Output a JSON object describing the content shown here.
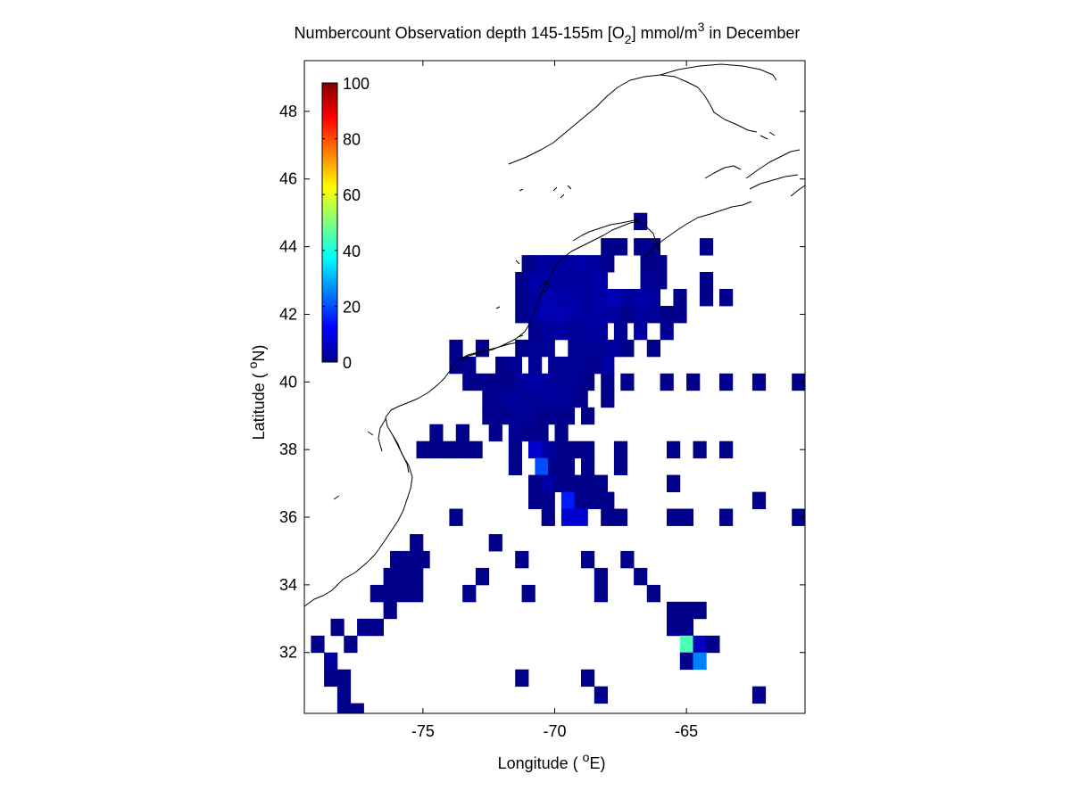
{
  "chart_data": {
    "type": "heatmap",
    "title": {
      "prefix": "Numbercount Observation depth 145-155m [O",
      "sub": "2",
      "mid": "] mmol/m",
      "sup": "3",
      "suffix": " in December"
    },
    "xlabel": {
      "text": "Longitude ( ",
      "sup": "o",
      "unit": "E)"
    },
    "ylabel": {
      "text": "Latitude ( ",
      "sup": "o",
      "unit": "N)"
    },
    "xlim": [
      -79.5,
      -60.5
    ],
    "ylim": [
      30.2,
      49.5
    ],
    "xticks": [
      -75,
      -70,
      -65
    ],
    "xtick_labels": [
      "-75",
      "-70",
      "-65"
    ],
    "yticks": [
      32,
      34,
      36,
      38,
      40,
      42,
      44,
      46,
      48
    ],
    "ytick_labels": [
      "32",
      "34",
      "36",
      "38",
      "40",
      "42",
      "44",
      "46",
      "48"
    ],
    "grid": false,
    "cell_size_deg": 0.5,
    "colormap": "jet",
    "colorbar": {
      "min": 0,
      "max": 100,
      "ticks": [
        0,
        20,
        40,
        60,
        80,
        100
      ],
      "tick_labels": [
        "0",
        "20",
        "40",
        "60",
        "80",
        "100"
      ],
      "placement": "top-left inside axes"
    },
    "coastline_color": "#000000",
    "cells": [
      [
        -66.75,
        44.75,
        1
      ],
      [
        -68,
        44,
        1
      ],
      [
        -67.5,
        44,
        1
      ],
      [
        -66.75,
        44,
        1
      ],
      [
        -66.25,
        44,
        1
      ],
      [
        -64.25,
        44,
        1
      ],
      [
        -71,
        43.5,
        1
      ],
      [
        -70.5,
        43.5,
        3
      ],
      [
        -70,
        43.5,
        3
      ],
      [
        -69.5,
        43.5,
        3
      ],
      [
        -69,
        43.5,
        4
      ],
      [
        -68.5,
        43.5,
        3
      ],
      [
        -68,
        43.5,
        1
      ],
      [
        -66.5,
        43.5,
        1
      ],
      [
        -66,
        43.5,
        1
      ],
      [
        -71.25,
        43,
        1
      ],
      [
        -70.75,
        43,
        4
      ],
      [
        -70.25,
        43,
        4
      ],
      [
        -69.75,
        43,
        3
      ],
      [
        -69.25,
        43,
        3
      ],
      [
        -68.75,
        43,
        3
      ],
      [
        -68.25,
        43,
        4
      ],
      [
        -66.5,
        43,
        2
      ],
      [
        -66,
        43,
        1
      ],
      [
        -64.25,
        43,
        1
      ],
      [
        -71.25,
        42.5,
        1
      ],
      [
        -70.75,
        42.5,
        3
      ],
      [
        -70.25,
        42.5,
        5
      ],
      [
        -69.75,
        42.5,
        4
      ],
      [
        -69.25,
        42.5,
        4
      ],
      [
        -68.75,
        42.5,
        3
      ],
      [
        -68.25,
        42.5,
        4
      ],
      [
        -67.75,
        42.5,
        5
      ],
      [
        -67.25,
        42.5,
        3
      ],
      [
        -66.75,
        42.5,
        4
      ],
      [
        -66.25,
        42.5,
        3
      ],
      [
        -65.25,
        42.5,
        1
      ],
      [
        -64.25,
        42.5,
        1
      ],
      [
        -63.5,
        42.5,
        1
      ],
      [
        -71.25,
        42,
        1
      ],
      [
        -70.75,
        42,
        4
      ],
      [
        -70.25,
        42,
        5
      ],
      [
        -69.75,
        42,
        5
      ],
      [
        -69.25,
        42,
        4
      ],
      [
        -68.75,
        42,
        3
      ],
      [
        -68.25,
        42,
        4
      ],
      [
        -67.75,
        42,
        3
      ],
      [
        -67.25,
        42,
        1
      ],
      [
        -66.75,
        42,
        3
      ],
      [
        -66.25,
        42,
        2
      ],
      [
        -65.75,
        42,
        1
      ],
      [
        -65.25,
        42,
        1
      ],
      [
        -70.75,
        41.5,
        1
      ],
      [
        -70.25,
        41.5,
        3
      ],
      [
        -69.75,
        41.5,
        3
      ],
      [
        -69.25,
        41.5,
        2
      ],
      [
        -68.75,
        41.5,
        3
      ],
      [
        -68.25,
        41.5,
        3
      ],
      [
        -67.5,
        41.5,
        2
      ],
      [
        -66.75,
        41.5,
        3
      ],
      [
        -65.75,
        41.5,
        2
      ],
      [
        -73.75,
        41,
        1
      ],
      [
        -72.75,
        41,
        1
      ],
      [
        -71.25,
        41,
        1
      ],
      [
        -70.75,
        41,
        2
      ],
      [
        -70.25,
        41,
        2
      ],
      [
        -69.25,
        41,
        2
      ],
      [
        -68.75,
        41,
        2
      ],
      [
        -68.25,
        41,
        2
      ],
      [
        -67.75,
        41,
        3
      ],
      [
        -67.25,
        41,
        1
      ],
      [
        -66.25,
        41,
        1
      ],
      [
        -73.75,
        40.5,
        1
      ],
      [
        -73.25,
        40.5,
        1
      ],
      [
        -72,
        40.5,
        1
      ],
      [
        -71.5,
        40.5,
        2
      ],
      [
        -70.75,
        40.5,
        2
      ],
      [
        -70,
        40.5,
        2
      ],
      [
        -69.5,
        40.5,
        2
      ],
      [
        -69,
        40.5,
        2
      ],
      [
        -68.5,
        40.5,
        1
      ],
      [
        -68,
        40.5,
        4
      ],
      [
        -73.25,
        40,
        1
      ],
      [
        -72.75,
        40,
        1
      ],
      [
        -72.25,
        40,
        1
      ],
      [
        -71.75,
        40,
        1
      ],
      [
        -71.25,
        40,
        3
      ],
      [
        -70.75,
        40,
        4
      ],
      [
        -70.25,
        40,
        3
      ],
      [
        -69.75,
        40,
        2
      ],
      [
        -69.25,
        40,
        2
      ],
      [
        -68.75,
        40,
        1
      ],
      [
        -68,
        40,
        1
      ],
      [
        -67.25,
        40,
        1
      ],
      [
        -65.75,
        40,
        1
      ],
      [
        -64.75,
        40,
        1
      ],
      [
        -63.5,
        40,
        1
      ],
      [
        -62.25,
        40,
        1
      ],
      [
        -60.75,
        40,
        1
      ],
      [
        -72.5,
        39.5,
        1
      ],
      [
        -72,
        39.5,
        2
      ],
      [
        -71.5,
        39.5,
        3
      ],
      [
        -71,
        39.5,
        2
      ],
      [
        -70.5,
        39.5,
        2
      ],
      [
        -70,
        39.5,
        3
      ],
      [
        -69.5,
        39.5,
        2
      ],
      [
        -69,
        39.5,
        1
      ],
      [
        -68,
        39.5,
        1
      ],
      [
        -72.5,
        39,
        1
      ],
      [
        -72,
        39,
        1
      ],
      [
        -71.5,
        39,
        2
      ],
      [
        -71,
        39,
        2
      ],
      [
        -70.5,
        39,
        1
      ],
      [
        -70,
        39,
        1
      ],
      [
        -69.5,
        39,
        1
      ],
      [
        -68.75,
        39,
        1
      ],
      [
        -74.5,
        38.5,
        1
      ],
      [
        -73.5,
        38.5,
        1
      ],
      [
        -72.25,
        38.5,
        1
      ],
      [
        -71.5,
        38.5,
        2
      ],
      [
        -71,
        38.5,
        1
      ],
      [
        -70.5,
        38.5,
        1
      ],
      [
        -69.75,
        38.5,
        1
      ],
      [
        -75,
        38,
        1
      ],
      [
        -74.5,
        38,
        1
      ],
      [
        -74,
        38,
        1
      ],
      [
        -73.5,
        38,
        1
      ],
      [
        -73,
        38,
        1
      ],
      [
        -71.5,
        38,
        1
      ],
      [
        -70.75,
        38,
        8
      ],
      [
        -70.25,
        38,
        3
      ],
      [
        -69.75,
        38,
        1
      ],
      [
        -69.25,
        38,
        1
      ],
      [
        -68.75,
        38,
        1
      ],
      [
        -67.5,
        38,
        1
      ],
      [
        -65.5,
        38,
        1
      ],
      [
        -64.5,
        38,
        1
      ],
      [
        -63.5,
        38,
        1
      ],
      [
        -71.5,
        37.5,
        1
      ],
      [
        -70.5,
        37.5,
        20
      ],
      [
        -70,
        37.5,
        1
      ],
      [
        -69.5,
        37.5,
        1
      ],
      [
        -68.75,
        37.5,
        1
      ],
      [
        -67.5,
        37.5,
        1
      ],
      [
        -70.75,
        37,
        1
      ],
      [
        -70.25,
        37,
        4
      ],
      [
        -69.75,
        37,
        1
      ],
      [
        -69.25,
        37,
        1
      ],
      [
        -68.75,
        37,
        1
      ],
      [
        -68.25,
        37,
        1
      ],
      [
        -65.5,
        37,
        1
      ],
      [
        -70.75,
        36.5,
        1
      ],
      [
        -70.25,
        36.5,
        1
      ],
      [
        -69.5,
        36.5,
        15
      ],
      [
        -69,
        36.5,
        1
      ],
      [
        -68.5,
        36.5,
        1
      ],
      [
        -68,
        36.5,
        1
      ],
      [
        -62.25,
        36.5,
        1
      ],
      [
        -73.75,
        36,
        1
      ],
      [
        -70.25,
        36,
        1
      ],
      [
        -69.5,
        36,
        8
      ],
      [
        -69,
        36,
        8
      ],
      [
        -68,
        36,
        1
      ],
      [
        -67.5,
        36,
        1
      ],
      [
        -65.5,
        36,
        1
      ],
      [
        -65,
        36,
        1
      ],
      [
        -63.5,
        36,
        1
      ],
      [
        -60.75,
        36,
        1
      ],
      [
        -75.25,
        35.25,
        1
      ],
      [
        -72.25,
        35.25,
        1
      ],
      [
        -76,
        34.75,
        1
      ],
      [
        -75.5,
        34.75,
        1
      ],
      [
        -75,
        34.75,
        1
      ],
      [
        -71.25,
        34.75,
        1
      ],
      [
        -68.75,
        34.75,
        1
      ],
      [
        -67.25,
        34.75,
        1
      ],
      [
        -76.25,
        34.25,
        1
      ],
      [
        -75.75,
        34.25,
        1
      ],
      [
        -75.25,
        34.25,
        1
      ],
      [
        -72.75,
        34.25,
        1
      ],
      [
        -68.25,
        34.25,
        1
      ],
      [
        -66.75,
        34.25,
        1
      ],
      [
        -76.75,
        33.75,
        1
      ],
      [
        -76.25,
        33.75,
        1
      ],
      [
        -75.75,
        33.75,
        1
      ],
      [
        -75.25,
        33.75,
        1
      ],
      [
        -73.25,
        33.75,
        1
      ],
      [
        -71,
        33.75,
        1
      ],
      [
        -68.25,
        33.75,
        1
      ],
      [
        -66.25,
        33.75,
        1
      ],
      [
        -76.25,
        33.25,
        1
      ],
      [
        -65.5,
        33.25,
        1
      ],
      [
        -65,
        33.25,
        1
      ],
      [
        -64.5,
        33.25,
        1
      ],
      [
        -78.25,
        32.75,
        1
      ],
      [
        -77.25,
        32.75,
        1
      ],
      [
        -76.75,
        32.75,
        1
      ],
      [
        -65.5,
        32.75,
        1
      ],
      [
        -65,
        32.75,
        1
      ],
      [
        -79,
        32.25,
        1
      ],
      [
        -77.75,
        32.25,
        1
      ],
      [
        -65,
        32.25,
        45
      ],
      [
        -64.5,
        32.25,
        6
      ],
      [
        -64,
        32.25,
        1
      ],
      [
        -78.5,
        31.75,
        3
      ],
      [
        -65,
        31.75,
        1
      ],
      [
        -64.5,
        31.75,
        25
      ],
      [
        -78.5,
        31.25,
        1
      ],
      [
        -78,
        31.25,
        1
      ],
      [
        -71.25,
        31.25,
        1
      ],
      [
        -68.75,
        31.25,
        1
      ],
      [
        -78,
        30.75,
        1
      ],
      [
        -68.25,
        30.75,
        1
      ],
      [
        -62.25,
        30.75,
        1
      ],
      [
        -78,
        30.25,
        1
      ],
      [
        -77.5,
        30.25,
        1
      ]
    ]
  }
}
